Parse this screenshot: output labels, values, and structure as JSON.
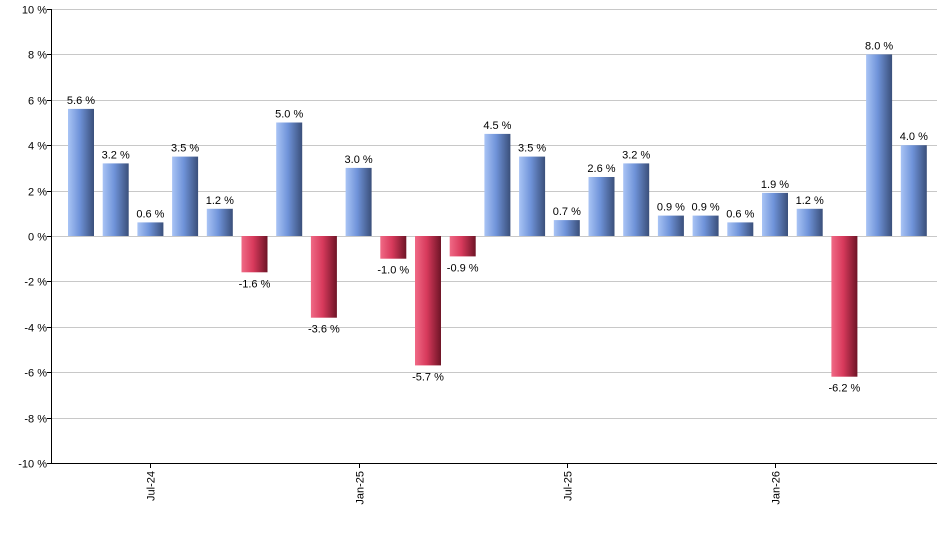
{
  "chart_data": {
    "type": "bar",
    "title": "",
    "xlabel": "",
    "ylabel": "",
    "ylim": [
      -10,
      10
    ],
    "yticks": [
      -10,
      -8,
      -6,
      -4,
      -2,
      0,
      2,
      4,
      6,
      8,
      10
    ],
    "ytick_suffix": " %",
    "grid": true,
    "x_tick_labels": [
      {
        "label": "Jul-24",
        "index": 2
      },
      {
        "label": "Jan-25",
        "index": 8
      },
      {
        "label": "Jul-25",
        "index": 14
      },
      {
        "label": "Jan-26",
        "index": 20
      }
    ],
    "values": [
      5.6,
      3.2,
      0.6,
      3.5,
      1.2,
      -1.6,
      5.0,
      -3.6,
      3.0,
      -1.0,
      -5.7,
      -0.9,
      4.5,
      3.5,
      0.7,
      2.6,
      3.2,
      0.9,
      0.9,
      0.6,
      1.9,
      1.2,
      -6.2,
      8.0,
      4.0
    ],
    "value_labels": [
      "5.6 %",
      "3.2 %",
      "0.6 %",
      "3.5 %",
      "1.2 %",
      "-1.6 %",
      "5.0 %",
      "-3.6 %",
      "3.0 %",
      "-1.0 %",
      "-5.7 %",
      "-0.9 %",
      "4.5 %",
      "3.5 %",
      "0.7 %",
      "2.6 %",
      "3.2 %",
      "0.9 %",
      "0.9 %",
      "0.6 %",
      "1.9 %",
      "1.2 %",
      "-6.2 %",
      "8.0 %",
      "4.0 %"
    ],
    "colors": {
      "positive_light": "#a9c4f5",
      "positive_mid": "#6f93d9",
      "positive_dark": "#3a4f7a",
      "negative_light": "#f06a86",
      "negative_mid": "#d83a5c",
      "negative_dark": "#6e1426",
      "grid": "#c8c8c8",
      "axis": "#000000",
      "text": "#000000"
    }
  }
}
